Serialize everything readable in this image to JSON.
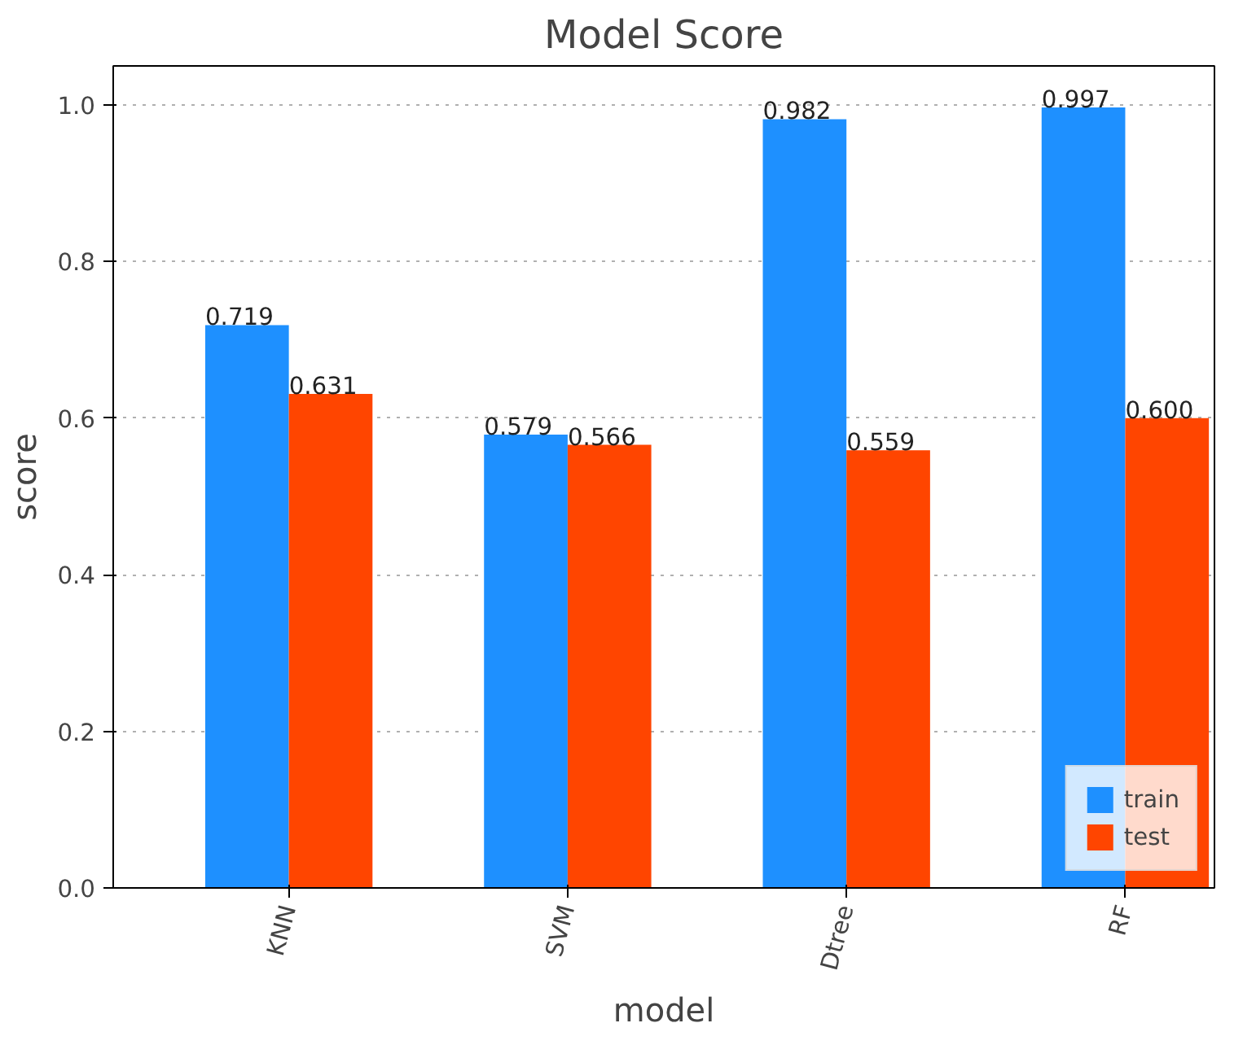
{
  "chart_data": {
    "type": "bar",
    "title": "Model Score",
    "xlabel": "model",
    "ylabel": "score",
    "categories": [
      "KNN",
      "SVM",
      "Dtree",
      "RF"
    ],
    "series": [
      {
        "name": "train",
        "color": "#1e90ff",
        "values": [
          0.719,
          0.579,
          0.982,
          0.997
        ],
        "value_labels": [
          "0.719",
          "0.579",
          "0.982",
          "0.997"
        ]
      },
      {
        "name": "test",
        "color": "#ff4500",
        "values": [
          0.631,
          0.566,
          0.559,
          0.6
        ],
        "value_labels": [
          "0.631",
          "0.566",
          "0.559",
          "0.600"
        ]
      }
    ],
    "ylim": [
      0,
      1.05
    ],
    "yticks": [
      {
        "value": 0,
        "label": "0.0"
      },
      0.2,
      0.4,
      0.6,
      0.8,
      {
        "value": 1,
        "label": "1.0"
      }
    ],
    "grid": "y",
    "legend": "bottom right"
  }
}
